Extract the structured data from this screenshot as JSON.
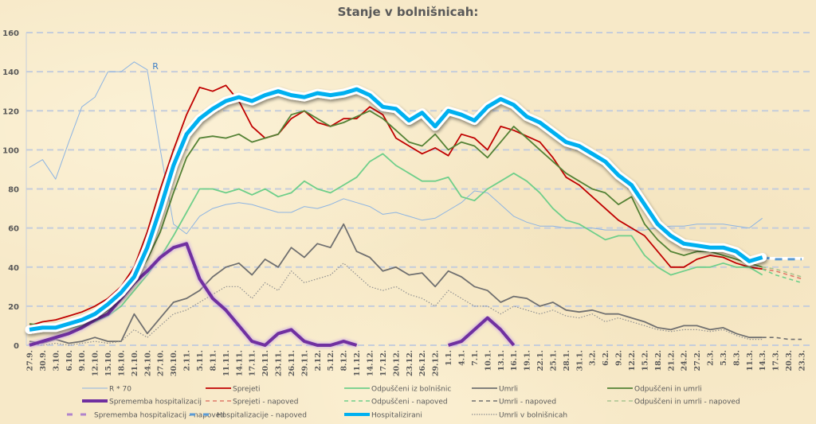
{
  "chart_data": {
    "type": "line",
    "title": "Stanje v bolnišnicah:",
    "xlabel": "",
    "ylabel": "",
    "ylim": [
      0,
      160
    ],
    "yticks": [
      0,
      20,
      40,
      60,
      80,
      100,
      120,
      140,
      160
    ],
    "grid": true,
    "legend_position": "bottom",
    "categories": [
      "27.9.",
      "30.9.",
      "3.10.",
      "6.10.",
      "9.10.",
      "12.10.",
      "15.10.",
      "18.10.",
      "21.10.",
      "24.10.",
      "27.10.",
      "30.10.",
      "2.11.",
      "5.11.",
      "8.11.",
      "11.11.",
      "14.11.",
      "17.11.",
      "20.11.",
      "23.11.",
      "26.11.",
      "29.11.",
      "2.12.",
      "5.12.",
      "8.12.",
      "11.12.",
      "14.12.",
      "17.12.",
      "20.12.",
      "23.12.",
      "26.12.",
      "29.12.",
      "1.1.",
      "4.1.",
      "7.1.",
      "10.1.",
      "13.1.",
      "16.1.",
      "19.1.",
      "22.1.",
      "25.1.",
      "28.1.",
      "31.1.",
      "3.2.",
      "6.2.",
      "9.2.",
      "12.2.",
      "15.2.",
      "18.2.",
      "21.2.",
      "24.2.",
      "27.2.",
      "2.3.",
      "5.3.",
      "8.3.",
      "11.3.",
      "14.3.",
      "17.3.",
      "20.3.",
      "23.3."
    ],
    "annotations": [
      {
        "text": "R",
        "x": "26.10.",
        "y": 143
      }
    ],
    "series": [
      {
        "name": "R * 70",
        "color": "#8db4e2",
        "style": "thin",
        "values": [
          91,
          95,
          85,
          104,
          122,
          127,
          140,
          140,
          145,
          141,
          100,
          62,
          57,
          66,
          70,
          72,
          73,
          72,
          70,
          68,
          68,
          71,
          70,
          72,
          75,
          73,
          71,
          67,
          68,
          66,
          64,
          65,
          69,
          73,
          79,
          78,
          72,
          66,
          63,
          61,
          61,
          60,
          60,
          60,
          59,
          59,
          59,
          59,
          60,
          61,
          61,
          62,
          62,
          62,
          61,
          60,
          65,
          null,
          null,
          null
        ]
      },
      {
        "name": "Sprejeti",
        "color": "#c00000",
        "style": "solid",
        "values": [
          10,
          12,
          13,
          15,
          17,
          20,
          24,
          30,
          40,
          58,
          80,
          100,
          118,
          132,
          130,
          133,
          125,
          112,
          106,
          108,
          116,
          120,
          114,
          112,
          116,
          116,
          122,
          118,
          106,
          102,
          98,
          101,
          97,
          108,
          106,
          100,
          112,
          110,
          107,
          104,
          96,
          86,
          82,
          76,
          70,
          64,
          60,
          56,
          48,
          40,
          40,
          44,
          46,
          45,
          42,
          40,
          39,
          null,
          null,
          null
        ]
      },
      {
        "name": "Sprejeti - napoved",
        "color": "#e07a6a",
        "style": "dashed",
        "values": [
          null,
          null,
          null,
          null,
          null,
          null,
          null,
          null,
          null,
          null,
          null,
          null,
          null,
          null,
          null,
          null,
          null,
          null,
          null,
          null,
          null,
          null,
          null,
          null,
          null,
          null,
          null,
          null,
          null,
          null,
          null,
          null,
          null,
          null,
          null,
          null,
          null,
          null,
          null,
          null,
          null,
          null,
          null,
          null,
          null,
          null,
          null,
          null,
          null,
          null,
          null,
          null,
          null,
          null,
          null,
          null,
          39,
          38,
          36,
          34
        ]
      },
      {
        "name": "Odpuščeni iz bolnišnic",
        "color": "#6fcf8a",
        "style": "solid",
        "values": [
          9,
          8,
          8,
          9,
          10,
          12,
          15,
          20,
          28,
          36,
          45,
          56,
          68,
          80,
          80,
          78,
          80,
          77,
          80,
          76,
          78,
          84,
          80,
          78,
          82,
          86,
          94,
          98,
          92,
          88,
          84,
          84,
          86,
          76,
          74,
          80,
          84,
          88,
          84,
          78,
          70,
          64,
          62,
          58,
          54,
          56,
          56,
          46,
          40,
          36,
          38,
          40,
          40,
          42,
          40,
          40,
          36,
          null,
          null,
          null
        ]
      },
      {
        "name": "Odpuščeni - napoved",
        "color": "#6fcf8a",
        "style": "dashed",
        "values": [
          null,
          null,
          null,
          null,
          null,
          null,
          null,
          null,
          null,
          null,
          null,
          null,
          null,
          null,
          null,
          null,
          null,
          null,
          null,
          null,
          null,
          null,
          null,
          null,
          null,
          null,
          null,
          null,
          null,
          null,
          null,
          null,
          null,
          null,
          null,
          null,
          null,
          null,
          null,
          null,
          null,
          null,
          null,
          null,
          null,
          null,
          null,
          null,
          null,
          null,
          null,
          null,
          null,
          null,
          null,
          null,
          39,
          36,
          34,
          32
        ]
      },
      {
        "name": "Umrli",
        "color": "#707070",
        "style": "solid",
        "values": [
          2,
          1,
          3,
          1,
          2,
          4,
          2,
          2,
          16,
          6,
          14,
          22,
          24,
          28,
          35,
          40,
          42,
          36,
          44,
          40,
          50,
          45,
          52,
          50,
          62,
          48,
          45,
          38,
          40,
          36,
          37,
          30,
          38,
          35,
          30,
          28,
          22,
          25,
          24,
          20,
          22,
          18,
          17,
          18,
          16,
          16,
          14,
          12,
          9,
          8,
          10,
          10,
          8,
          9,
          6,
          4,
          4,
          null,
          null,
          null
        ]
      },
      {
        "name": "Umrli - napoved",
        "color": "#707070",
        "style": "dashed",
        "values": [
          null,
          null,
          null,
          null,
          null,
          null,
          null,
          null,
          null,
          null,
          null,
          null,
          null,
          null,
          null,
          null,
          null,
          null,
          null,
          null,
          null,
          null,
          null,
          null,
          null,
          null,
          null,
          null,
          null,
          null,
          null,
          null,
          null,
          null,
          null,
          null,
          null,
          null,
          null,
          null,
          null,
          null,
          null,
          null,
          null,
          null,
          null,
          null,
          null,
          null,
          null,
          null,
          null,
          null,
          null,
          null,
          4,
          4,
          3,
          3
        ]
      },
      {
        "name": "Umrli v bolnišnicah",
        "color": "#909090",
        "style": "dotted",
        "values": [
          1,
          0,
          1,
          0,
          1,
          2,
          1,
          2,
          8,
          4,
          10,
          16,
          18,
          22,
          26,
          30,
          30,
          24,
          32,
          28,
          38,
          32,
          34,
          36,
          42,
          36,
          30,
          28,
          30,
          26,
          24,
          20,
          28,
          24,
          20,
          20,
          16,
          20,
          18,
          16,
          18,
          15,
          14,
          16,
          12,
          14,
          12,
          10,
          8,
          7,
          8,
          8,
          7,
          8,
          5,
          3,
          3,
          null,
          null,
          null
        ]
      },
      {
        "name": "Odpuščeni in umrli",
        "color": "#548235",
        "style": "solid",
        "values": [
          11,
          10,
          10,
          11,
          12,
          14,
          18,
          24,
          34,
          44,
          58,
          78,
          96,
          106,
          107,
          106,
          108,
          104,
          106,
          108,
          118,
          120,
          116,
          112,
          114,
          117,
          120,
          116,
          110,
          104,
          102,
          108,
          100,
          104,
          102,
          96,
          104,
          112,
          106,
          100,
          94,
          88,
          84,
          80,
          78,
          72,
          76,
          62,
          54,
          48,
          46,
          48,
          48,
          46,
          44,
          42,
          40,
          null,
          null,
          null
        ]
      },
      {
        "name": "Odpuščeni in umrli - napoved",
        "color": "#a9c48f",
        "style": "dashed",
        "values": [
          null,
          null,
          null,
          null,
          null,
          null,
          null,
          null,
          null,
          null,
          null,
          null,
          null,
          null,
          null,
          null,
          null,
          null,
          null,
          null,
          null,
          null,
          null,
          null,
          null,
          null,
          null,
          null,
          null,
          null,
          null,
          null,
          null,
          null,
          null,
          null,
          null,
          null,
          null,
          null,
          null,
          null,
          null,
          null,
          null,
          null,
          null,
          null,
          null,
          null,
          null,
          null,
          null,
          null,
          null,
          null,
          40,
          39,
          37,
          35
        ]
      },
      {
        "name": "Sprememba hospitalizacij",
        "color": "#7030a0",
        "style": "thick",
        "values": [
          0,
          2,
          4,
          6,
          9,
          13,
          16,
          24,
          32,
          38,
          45,
          50,
          52,
          34,
          24,
          18,
          10,
          2,
          0,
          6,
          8,
          2,
          0,
          0,
          2,
          0,
          null,
          null,
          null,
          null,
          null,
          null,
          0,
          2,
          8,
          14,
          8,
          0,
          null,
          null,
          null,
          null,
          null,
          null,
          null,
          null,
          null,
          null,
          null,
          null,
          null,
          null,
          null,
          null,
          null,
          null,
          null,
          null,
          null,
          null
        ]
      },
      {
        "name": "Sprememba hospitalizacij - napoved",
        "color": "#b084cc",
        "style": "dashed-thick",
        "values": [
          null,
          null,
          null,
          null,
          null,
          null,
          null,
          null,
          null,
          null,
          null,
          null,
          null,
          null,
          null,
          null,
          null,
          null,
          null,
          null,
          null,
          null,
          null,
          null,
          null,
          null,
          null,
          null,
          null,
          null,
          null,
          null,
          null,
          null,
          null,
          null,
          null,
          null,
          null,
          null,
          null,
          null,
          null,
          null,
          null,
          null,
          null,
          null,
          null,
          null,
          null,
          null,
          null,
          null,
          null,
          null,
          null,
          0,
          null,
          0
        ]
      },
      {
        "name": "Hospitalizacije - napoved",
        "color": "#5b9bd5",
        "style": "dashed-thick",
        "values": [
          null,
          null,
          null,
          null,
          null,
          null,
          null,
          null,
          null,
          null,
          null,
          null,
          null,
          null,
          null,
          null,
          null,
          null,
          null,
          null,
          null,
          null,
          null,
          null,
          null,
          null,
          null,
          null,
          null,
          null,
          null,
          null,
          null,
          null,
          null,
          null,
          null,
          null,
          null,
          null,
          null,
          null,
          null,
          null,
          null,
          null,
          null,
          null,
          null,
          null,
          null,
          null,
          null,
          null,
          null,
          null,
          45,
          44,
          44,
          44
        ]
      },
      {
        "name": "Hospitalizirani",
        "color": "#00b0f0",
        "style": "very-thick",
        "values": [
          8,
          9,
          9,
          11,
          13,
          16,
          21,
          27,
          35,
          50,
          70,
          92,
          108,
          116,
          121,
          125,
          127,
          125,
          128,
          130,
          128,
          127,
          129,
          128,
          129,
          131,
          128,
          122,
          121,
          115,
          119,
          112,
          120,
          118,
          115,
          122,
          126,
          123,
          117,
          114,
          109,
          104,
          102,
          98,
          94,
          87,
          82,
          72,
          62,
          56,
          52,
          51,
          50,
          50,
          48,
          43,
          45,
          null,
          null,
          null
        ]
      }
    ],
    "legend": [
      [
        "R * 70",
        "Sprejeti",
        "Odpuščeni iz bolnišnic",
        "Umrli",
        "Odpuščeni in umrli"
      ],
      [
        "Sprememba hospitalizacij",
        "Sprejeti - napoved",
        "Odpuščeni - napoved",
        "Umrli - napoved",
        "Odpuščeni in umrli - napoved"
      ],
      [
        "Sprememba hospitalizacij - napoved",
        "Hospitalizacije - napoved",
        "Hospitalizirani",
        "Umrli v bolnišnicah"
      ]
    ]
  }
}
